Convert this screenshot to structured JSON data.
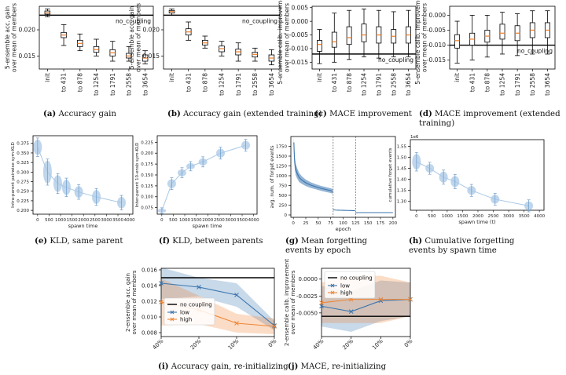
{
  "captions": [
    {
      "tag": "(a)",
      "text": "Accuracy gain"
    },
    {
      "tag": "(b)",
      "text": "Accuracy gain (extended training)"
    },
    {
      "tag": "(c)",
      "text": "MACE improvement"
    },
    {
      "tag": "(d)",
      "text": "MACE improvement (extended training)"
    },
    {
      "tag": "(e)",
      "text": "KLD, same parent"
    },
    {
      "tag": "(f)",
      "text": "KLD, between parents"
    },
    {
      "tag": "(g)",
      "text": "Mean forgetting events by epoch"
    },
    {
      "tag": "(h)",
      "text": "Cumulative forgetting events by spawn time"
    },
    {
      "tag": "(i)",
      "text": "Accuracy gain, re-initializing"
    },
    {
      "tag": "(j)",
      "text": "MACE, re-initializing"
    }
  ],
  "colors": {
    "blue": "#3b75af",
    "orange": "#ef8636",
    "light_blue": "#a9c8e6",
    "black": "#000000"
  },
  "chart_data": [
    {
      "id": "a",
      "type": "box",
      "categories": [
        "init",
        "to 431",
        "to 878",
        "to 1254",
        "to 1791",
        "to 2558",
        "to 3654"
      ],
      "ylabel": "5-ensemble acc. gain\nover mean of members",
      "yticks": [
        0.015,
        0.02
      ],
      "ylim": [
        0.0125,
        0.0245
      ],
      "reference": {
        "label": "no_coupling",
        "value": 0.0228
      },
      "boxes": [
        {
          "whislo": 0.0225,
          "q1": 0.023,
          "med": 0.0233,
          "q3": 0.0236,
          "whishi": 0.024
        },
        {
          "whislo": 0.017,
          "q1": 0.0185,
          "med": 0.019,
          "q3": 0.0195,
          "whishi": 0.021
        },
        {
          "whislo": 0.016,
          "q1": 0.0168,
          "med": 0.0174,
          "q3": 0.018,
          "whishi": 0.0192
        },
        {
          "whislo": 0.015,
          "q1": 0.0157,
          "med": 0.0162,
          "q3": 0.0168,
          "whishi": 0.0182
        },
        {
          "whislo": 0.014,
          "q1": 0.015,
          "med": 0.0156,
          "q3": 0.0162,
          "whishi": 0.0178
        },
        {
          "whislo": 0.014,
          "q1": 0.0146,
          "med": 0.015,
          "q3": 0.0155,
          "whishi": 0.0168
        },
        {
          "whislo": 0.0135,
          "q1": 0.014,
          "med": 0.0146,
          "q3": 0.0152,
          "whishi": 0.016
        }
      ]
    },
    {
      "id": "b",
      "type": "box",
      "categories": [
        "init",
        "to 431",
        "to 878",
        "to 1254",
        "to 1791",
        "to 2558",
        "to 3654"
      ],
      "ylabel": "5-ensemble acc. gain\nover mean of members",
      "yticks": [
        0.015,
        0.02
      ],
      "ylim": [
        0.0125,
        0.0245
      ],
      "reference": {
        "label": "no_coupling",
        "value": 0.0228
      },
      "boxes": [
        {
          "whislo": 0.0228,
          "q1": 0.0232,
          "med": 0.0235,
          "q3": 0.0237,
          "whishi": 0.024
        },
        {
          "whislo": 0.018,
          "q1": 0.019,
          "med": 0.0196,
          "q3": 0.0202,
          "whishi": 0.0215
        },
        {
          "whislo": 0.0165,
          "q1": 0.0171,
          "med": 0.0175,
          "q3": 0.018,
          "whishi": 0.0188
        },
        {
          "whislo": 0.015,
          "q1": 0.0158,
          "med": 0.0164,
          "q3": 0.0169,
          "whishi": 0.0178
        },
        {
          "whislo": 0.014,
          "q1": 0.0152,
          "med": 0.0158,
          "q3": 0.0163,
          "whishi": 0.0175
        },
        {
          "whislo": 0.014,
          "q1": 0.0148,
          "med": 0.0153,
          "q3": 0.0157,
          "whishi": 0.0165
        },
        {
          "whislo": 0.0133,
          "q1": 0.014,
          "med": 0.0146,
          "q3": 0.0152,
          "whishi": 0.0162
        }
      ]
    },
    {
      "id": "c",
      "type": "box",
      "categories": [
        "init",
        "to 431",
        "to 878",
        "to 1254",
        "to 1791",
        "to 2558",
        "to 3654"
      ],
      "ylabel": "5-ensemble calib. improvement\nover mean of members",
      "yticks": [
        -0.015,
        -0.01,
        -0.005,
        0.0,
        0.005
      ],
      "ylim": [
        -0.0175,
        0.0055
      ],
      "reference": {
        "label": "no_coupling",
        "value": -0.012
      },
      "boxes": [
        {
          "whislo": -0.0155,
          "q1": -0.011,
          "med": -0.0085,
          "q3": -0.007,
          "whishi": -0.003
        },
        {
          "whislo": -0.015,
          "q1": -0.0095,
          "med": -0.0075,
          "q3": -0.004,
          "whishi": 0.003
        },
        {
          "whislo": -0.014,
          "q1": -0.0085,
          "med": -0.006,
          "q3": -0.002,
          "whishi": 0.004
        },
        {
          "whislo": -0.013,
          "q1": -0.0075,
          "med": -0.005,
          "q3": -0.001,
          "whishi": 0.0045
        },
        {
          "whislo": -0.0135,
          "q1": -0.008,
          "med": -0.005,
          "q3": -0.002,
          "whishi": 0.004
        },
        {
          "whislo": -0.013,
          "q1": -0.008,
          "med": -0.0055,
          "q3": -0.003,
          "whishi": 0.0035
        },
        {
          "whislo": -0.013,
          "q1": -0.008,
          "med": -0.005,
          "q3": -0.002,
          "whishi": 0.004
        }
      ]
    },
    {
      "id": "d",
      "type": "box",
      "categories": [
        "init",
        "to 431",
        "to 878",
        "to 1254",
        "to 1791",
        "to 2558",
        "to 3654"
      ],
      "ylabel": "5-ensemble calib. improvement\nover mean of members",
      "yticks": [
        -0.015,
        -0.01,
        -0.005,
        0.0
      ],
      "ylim": [
        -0.018,
        0.003
      ],
      "reference": {
        "label": "no_coupling",
        "value": -0.01
      },
      "boxes": [
        {
          "whislo": -0.016,
          "q1": -0.011,
          "med": -0.0085,
          "q3": -0.0065,
          "whishi": -0.002
        },
        {
          "whislo": -0.015,
          "q1": -0.01,
          "med": -0.008,
          "q3": -0.006,
          "whishi": 0.0
        },
        {
          "whislo": -0.014,
          "q1": -0.009,
          "med": -0.007,
          "q3": -0.005,
          "whishi": 0.0
        },
        {
          "whislo": -0.013,
          "q1": -0.008,
          "med": -0.006,
          "q3": -0.003,
          "whishi": 0.001
        },
        {
          "whislo": -0.0135,
          "q1": -0.0085,
          "med": -0.006,
          "q3": -0.0035,
          "whishi": 0.0005
        },
        {
          "whislo": -0.013,
          "q1": -0.0075,
          "med": -0.005,
          "q3": -0.0025,
          "whishi": 0.0015
        },
        {
          "whislo": -0.013,
          "q1": -0.0075,
          "med": -0.005,
          "q3": -0.0025,
          "whishi": 0.0015
        }
      ]
    },
    {
      "id": "e",
      "type": "violin",
      "xlabel": "spawn time",
      "ylabel": "Intra-parent pairwise sym-KLD",
      "xticks": [
        0,
        500,
        1000,
        1500,
        2000,
        2500,
        3000,
        3500,
        4000
      ],
      "yticks": [
        0.2,
        0.225,
        0.25,
        0.275,
        0.3,
        0.325,
        0.35,
        0.375
      ],
      "xlim": [
        -200,
        4150
      ],
      "ylim": [
        0.19,
        0.395
      ],
      "x": [
        0,
        431,
        878,
        1254,
        1791,
        2558,
        3654
      ],
      "mean": [
        0.365,
        0.3,
        0.27,
        0.26,
        0.248,
        0.235,
        0.22
      ],
      "spread": [
        0.02,
        0.03,
        0.022,
        0.02,
        0.015,
        0.018,
        0.015
      ]
    },
    {
      "id": "f",
      "type": "violin",
      "xlabel": "spawn time",
      "ylabel": "Inter-parent 10-ensb sym-KLD",
      "xticks": [
        0,
        500,
        1000,
        1500,
        2000,
        2500,
        3000,
        3500,
        4000
      ],
      "yticks": [
        0.075,
        0.1,
        0.125,
        0.15,
        0.175,
        0.2,
        0.225
      ],
      "xlim": [
        -200,
        4150
      ],
      "ylim": [
        0.06,
        0.24
      ],
      "x": [
        0,
        431,
        878,
        1254,
        1791,
        2558,
        3654
      ],
      "mean": [
        0.068,
        0.13,
        0.155,
        0.17,
        0.18,
        0.2,
        0.218
      ],
      "spread": [
        0.003,
        0.01,
        0.008,
        0.007,
        0.008,
        0.01,
        0.01
      ]
    },
    {
      "id": "g",
      "type": "line",
      "xlabel": "epoch",
      "ylabel": "avg. num. of forget events",
      "xticks": [
        0,
        25,
        50,
        75,
        100,
        125,
        150,
        175,
        200
      ],
      "yticks": [
        0,
        250,
        500,
        750,
        1000,
        1250,
        1500,
        1750
      ],
      "xlim": [
        -5,
        205
      ],
      "ylim": [
        -60,
        2000
      ],
      "series": [
        {
          "segment": "first run",
          "x": [
            1,
            2,
            3,
            5,
            8,
            12,
            18,
            25,
            35,
            45,
            55,
            65,
            75,
            79
          ],
          "y": [
            1850,
            1500,
            1300,
            1150,
            1050,
            950,
            880,
            820,
            760,
            720,
            680,
            650,
            620,
            600
          ]
        },
        {
          "segment": "second run",
          "x": [
            80,
            85,
            90,
            95,
            100,
            110,
            120,
            124
          ],
          "y": [
            130,
            125,
            122,
            120,
            118,
            115,
            112,
            110
          ]
        },
        {
          "segment": "third run",
          "x": [
            125,
            130,
            150,
            175,
            200
          ],
          "y": [
            60,
            60,
            60,
            60,
            60
          ]
        }
      ],
      "vlines": [
        80,
        125
      ]
    },
    {
      "id": "h",
      "type": "violin",
      "xlabel": "spawn time (t)",
      "ylabel": "cumulative forget events",
      "scale_label": "1e6",
      "xticks": [
        0,
        500,
        1000,
        1500,
        2000,
        2500,
        3000,
        3500,
        4000
      ],
      "yticks": [
        1.3,
        1.35,
        1.4,
        1.45,
        1.5,
        1.55
      ],
      "xlim": [
        -200,
        4150
      ],
      "ylim": [
        1.26,
        1.58
      ],
      "x": [
        0,
        431,
        878,
        1254,
        1791,
        2558,
        3654
      ],
      "mean": [
        1.48,
        1.45,
        1.41,
        1.39,
        1.35,
        1.31,
        1.28
      ],
      "spread": [
        0.035,
        0.02,
        0.025,
        0.025,
        0.02,
        0.02,
        0.02
      ]
    },
    {
      "id": "i",
      "type": "line",
      "ylabel": "2-ensemble acc. gain\nover mean of members",
      "xtick_labels": [
        "40%",
        "20%",
        "10%",
        "0%"
      ],
      "yticks": [
        0.008,
        0.01,
        0.012,
        0.014,
        0.016
      ],
      "ylim": [
        0.0075,
        0.0162
      ],
      "reference": {
        "label": "no coupling",
        "value": 0.015
      },
      "legend": "center-left",
      "series": [
        {
          "name": "low",
          "y": [
            0.0143,
            0.0138,
            0.0128,
            0.0089
          ],
          "band": [
            0.002,
            0.0012,
            0.0015,
            0.0006
          ]
        },
        {
          "name": "high",
          "y": [
            0.0119,
            0.0109,
            0.0092,
            0.0088
          ],
          "band": [
            0.003,
            0.0018,
            0.0012,
            0.001
          ]
        }
      ]
    },
    {
      "id": "j",
      "type": "line",
      "ylabel": "2-ensemble calib. improvement\nover mean of members",
      "xtick_labels": [
        "40%",
        "20%",
        "10%",
        "0%"
      ],
      "yticks": [
        -0.005,
        -0.0025,
        0.0
      ],
      "ylim": [
        -0.0085,
        0.0016
      ],
      "reference": {
        "label": "no coupling",
        "value": -0.0055
      },
      "legend": "top-left",
      "series": [
        {
          "name": "low",
          "y": [
            -0.004,
            -0.0048,
            -0.0032,
            -0.003
          ],
          "band": [
            0.003,
            0.003,
            0.003,
            0.0025
          ]
        },
        {
          "name": "high",
          "y": [
            -0.0035,
            -0.003,
            -0.003,
            -0.003
          ],
          "band": [
            0.003,
            0.0035,
            0.0035,
            0.0025
          ]
        }
      ]
    }
  ]
}
